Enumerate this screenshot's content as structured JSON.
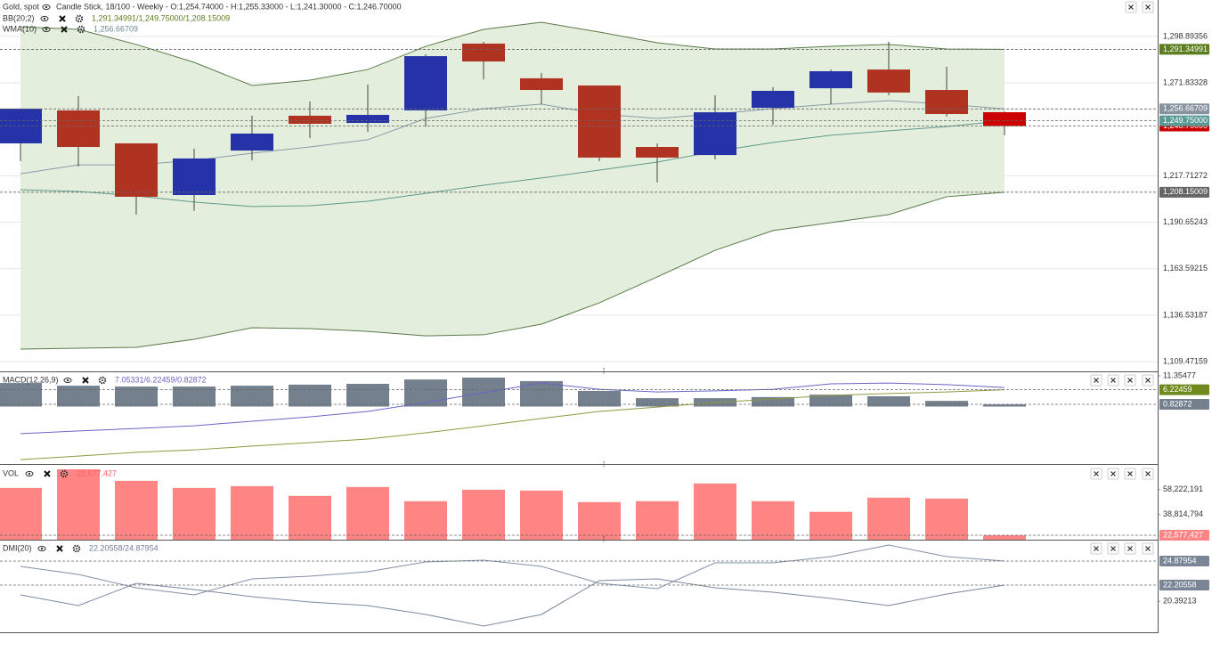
{
  "chart_data": [
    {
      "type": "candlestick",
      "title": "Gold, spot",
      "subtitle": "Candle Stick, 18/100 - Weekly - O:1,254.74000 - H:1,255.33000 - L:1,241.30000 - C:1,246.70000",
      "overlays": [
        {
          "name": "BB(20;2)",
          "legend": "1,291.34991/1,249.75000/1,208.15009",
          "legend_color": "#5b7d1f"
        },
        {
          "name": "WMA(10)",
          "legend": "1,256.66709",
          "legend_color": "#6f8797"
        }
      ],
      "open": [
        1236.6,
        1255.8,
        1236.6,
        1206.5,
        1232.4,
        1252.7,
        1248.5,
        1255.8,
        1294.7,
        1274.5,
        1270.3,
        1234.5,
        1229.8,
        1257.3,
        1268.7,
        1279.6,
        1267.7,
        1254.74
      ],
      "high": [
        1256.8,
        1264.1,
        1236.6,
        1233.5,
        1252.7,
        1261.0,
        1270.8,
        1288.5,
        1295.7,
        1277.6,
        1270.3,
        1236.6,
        1264.6,
        1269.3,
        1279.6,
        1295.7,
        1281.2,
        1255.33
      ],
      "low": [
        1226.2,
        1223.1,
        1195.1,
        1197.2,
        1226.7,
        1239.7,
        1243.3,
        1246.4,
        1273.9,
        1259.4,
        1226.2,
        1213.8,
        1227.3,
        1247.5,
        1259.4,
        1264.6,
        1252.2,
        1241.3
      ],
      "close": [
        1256.8,
        1234.5,
        1205.5,
        1227.8,
        1242.3,
        1248.0,
        1253.2,
        1287.4,
        1284.3,
        1267.7,
        1228.3,
        1228.3,
        1254.7,
        1267.2,
        1278.6,
        1266.2,
        1253.7,
        1246.7
      ],
      "up_color": "#2633a8",
      "down_color": "#b03220",
      "last_color": "#cc0000",
      "series": [
        {
          "type": "line",
          "color": "#5a7a48",
          "values": [
            1304.5,
            1303.0,
            1294.2,
            1283.8,
            1270.3,
            1273.4,
            1279.6,
            1293.1,
            1303.0,
            1307.1,
            1301.4,
            1295.2,
            1291.6,
            1291.6,
            1293.1,
            1294.2,
            1291.6,
            1291.34991
          ]
        },
        {
          "type": "line",
          "color": "#5f9a8c",
          "values": [
            1209.6,
            1208.6,
            1206.0,
            1202.4,
            1199.8,
            1200.3,
            1202.9,
            1207.5,
            1212.2,
            1216.4,
            1221.0,
            1225.7,
            1231.9,
            1237.1,
            1241.3,
            1243.9,
            1246.4,
            1249.75
          ]
        },
        {
          "type": "line",
          "color": "#5a7a48",
          "values": [
            1116.8,
            1117.3,
            1117.8,
            1122.5,
            1129.2,
            1128.7,
            1127.1,
            1124.5,
            1125.1,
            1131.3,
            1143.7,
            1158.8,
            1174.3,
            1185.8,
            1190.4,
            1195.1,
            1205.5,
            1208.15009
          ]
        },
        {
          "type": "line",
          "color": "#8a9aa8",
          "values": [
            1218.9,
            1224.1,
            1224.1,
            1226.7,
            1230.9,
            1234.5,
            1238.7,
            1251.1,
            1256.8,
            1259.4,
            1253.7,
            1251.1,
            1253.7,
            1256.8,
            1259.4,
            1261.5,
            1259.4,
            1256.66709
          ]
        }
      ],
      "band": {
        "series": [
          0,
          2
        ],
        "color": "#e3efdc"
      },
      "ylim": [
        1103.8,
        1320.1
      ],
      "yticks": [
        {
          "value": 1109.47159,
          "label": "1,109.47159"
        },
        {
          "value": 1136.53187,
          "label": "1,136.53187"
        },
        {
          "value": 1163.59215,
          "label": "1,163.59215"
        },
        {
          "value": 1190.65243,
          "label": "1,190.65243"
        },
        {
          "value": 1217.71272,
          "label": "1,217.71272"
        },
        {
          "value": 1271.83328,
          "label": "1,271.83328"
        },
        {
          "value": 1298.89356,
          "label": "1,298.89356"
        }
      ],
      "grid": true,
      "markers": [
        {
          "value": 1291.34991,
          "label": "1,291.34991",
          "color": "#5b7d1f"
        },
        {
          "value": 1256.66709,
          "label": "1,256.66709",
          "color": "#86939f"
        },
        {
          "value": 1246.7,
          "label": "1,246.70000",
          "color": "#c80000"
        },
        {
          "value": 1249.75,
          "label": "1,249.75000",
          "color": "#5a9a95"
        },
        {
          "value": 1208.15009,
          "label": "1,208.15009",
          "color": "#656565"
        }
      ]
    },
    {
      "type": "macd",
      "title": "MACD(12,26,9)",
      "legend": "7.05331/6.22459/0.82872",
      "legend_color": "#6b64c8",
      "series": [
        {
          "type": "bar",
          "color": "#75808e",
          "values": [
            8.7,
            7.7,
            7.4,
            7.4,
            7.7,
            8.1,
            8.4,
            10.0,
            10.7,
            9.4,
            5.8,
            3.1,
            3.1,
            3.5,
            4.4,
            3.8,
            2.1,
            0.82872
          ]
        },
        {
          "type": "line",
          "color": "#6b64c8",
          "values": [
            -10.0,
            -9.0,
            -8.1,
            -7.1,
            -5.4,
            -3.8,
            -1.8,
            1.5,
            5.1,
            8.7,
            6.4,
            5.4,
            5.8,
            6.4,
            8.4,
            8.7,
            8.1,
            7.05331
          ]
        },
        {
          "type": "line",
          "color": "#8c9a40",
          "values": [
            -19.6,
            -18.3,
            -16.9,
            -16.0,
            -14.6,
            -13.3,
            -12.0,
            -9.7,
            -7.1,
            -4.4,
            -1.8,
            -0.2,
            1.5,
            2.8,
            4.1,
            4.8,
            5.4,
            6.22459
          ]
        }
      ],
      "ylim": [
        -21.2,
        12.67
      ],
      "yticks": [
        11.35477
      ],
      "grid": false,
      "markers": [
        {
          "value": 6.22459,
          "label": "6.22459",
          "color": "#6f8a1c"
        },
        {
          "value": 0.82872,
          "label": "0.82872",
          "color": "#75808e"
        }
      ]
    },
    {
      "type": "volume",
      "title": "VOL",
      "legend": "22,577,427",
      "legend_color": "#ff6060",
      "series": [
        {
          "type": "bar",
          "color": "#ff8484",
          "values": [
            59608433,
            74163974,
            65153401,
            59608433,
            60994675,
            53370360,
            60301554,
            49211618,
            58222191,
            57529070,
            48518497,
            49211618,
            63074038,
            49211618,
            40894166,
            51984102,
            51290981,
            22577427
          ]
        }
      ],
      "ylim": [
        19111822,
        76936458
      ],
      "yticks": [
        {
          "value": 58222191,
          "label": "58,222,191"
        },
        {
          "value": 38814794,
          "label": "38,814,794"
        }
      ],
      "grid": false,
      "markers": [
        {
          "value": 22577427,
          "label": "22,577,427",
          "color": "#ff8484"
        }
      ]
    },
    {
      "type": "dmi",
      "title": "DMI(20)",
      "legend": "22.20558/24.87954",
      "legend_color": "#6f7f96",
      "series": [
        {
          "type": "line",
          "color": "#8090a8",
          "values": [
            24.29,
            23.39,
            21.91,
            21.12,
            22.9,
            23.2,
            23.69,
            24.78,
            24.98,
            24.29,
            22.4,
            21.81,
            24.68,
            24.68,
            25.37,
            26.66,
            25.37,
            24.87954
          ]
        },
        {
          "type": "line",
          "color": "#7a8aa0",
          "values": [
            21.12,
            19.93,
            22.4,
            21.71,
            20.92,
            20.32,
            19.93,
            18.94,
            17.65,
            18.94,
            22.7,
            22.9,
            21.91,
            21.41,
            20.72,
            19.93,
            21.21,
            22.20558
          ]
        }
      ],
      "ylim": [
        16.956,
        27.157
      ],
      "yticks": [
        20.39213
      ],
      "grid": false,
      "markers": [
        {
          "value": 24.87954,
          "label": "24.87954",
          "color": "#7a8698"
        },
        {
          "value": 22.20558,
          "label": "22.20558",
          "color": "#7a8698"
        }
      ]
    }
  ]
}
